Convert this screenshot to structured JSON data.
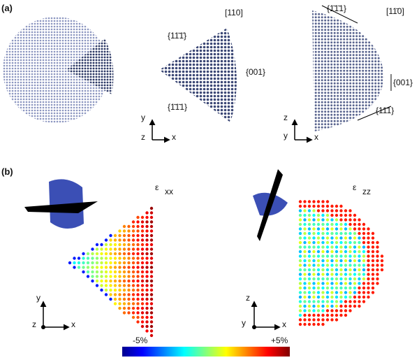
{
  "panel_a": {
    "label": "(a)",
    "view_1": {
      "direction": "[110]",
      "facets": [
        "{11̄1̄}",
        "{001}",
        "{1̄1̄1}"
      ],
      "axes": [
        "y",
        "z",
        "x"
      ]
    },
    "view_2": {
      "direction": "[11̄0]",
      "facets": [
        "{1̄1̄1}",
        "{001}",
        "{111}"
      ],
      "axes": [
        "z",
        "y",
        "x"
      ]
    }
  },
  "panel_b": {
    "label": "(b)",
    "map_1": {
      "symbol": "ε",
      "subscript": "xx",
      "axes": [
        "y",
        "z",
        "x"
      ]
    },
    "map_2": {
      "symbol": "ε",
      "subscript": "zz",
      "axes": [
        "z",
        "y",
        "x"
      ]
    },
    "colorbar": {
      "min_label": "-5%",
      "max_label": "+5%"
    }
  }
}
